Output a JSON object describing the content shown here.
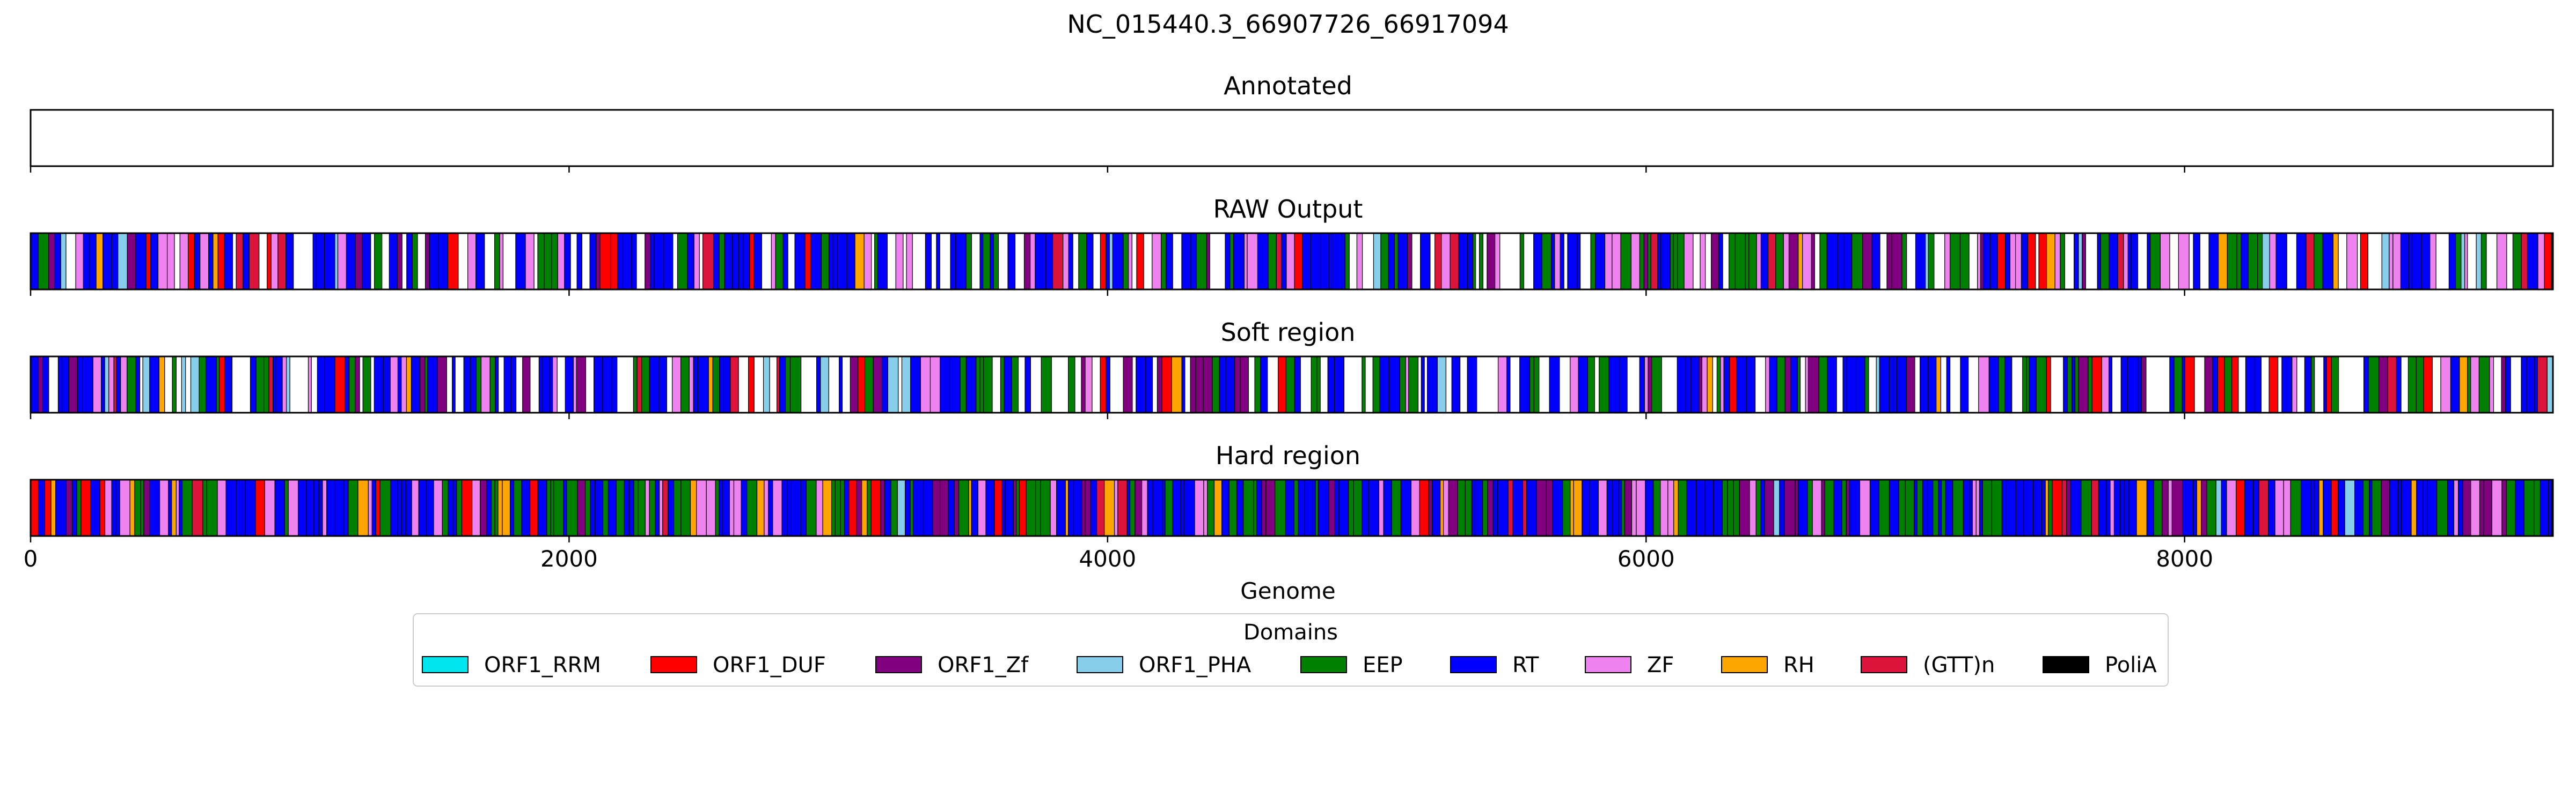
{
  "chart_data": {
    "type": "track",
    "title": "NC_015440.3_66907726_66917094",
    "xlabel": "Genome",
    "xlim": [
      0,
      9368
    ],
    "xticks": [
      0,
      2000,
      4000,
      6000,
      8000
    ],
    "tracks": [
      {
        "key": "annotated",
        "title": "Annotated",
        "segments": []
      },
      {
        "key": "raw",
        "title": "RAW Output",
        "density": 0.72,
        "mix": {
          "RT": 0.42,
          "EEP": 0.2,
          "ZF": 0.14,
          "ORF1_Zf": 0.1,
          "ORF1_DUF": 0.05,
          "ORF1_PHA": 0.04,
          "RH": 0.03,
          "(GTT)n": 0.02
        }
      },
      {
        "key": "soft",
        "title": "Soft region",
        "density": 0.72,
        "mix": {
          "RT": 0.42,
          "EEP": 0.2,
          "ZF": 0.14,
          "ORF1_Zf": 0.1,
          "ORF1_DUF": 0.05,
          "ORF1_PHA": 0.04,
          "RH": 0.03,
          "(GTT)n": 0.02
        }
      },
      {
        "key": "hard",
        "title": "Hard region",
        "density": 1.0,
        "mix": {
          "RT": 0.44,
          "EEP": 0.22,
          "ZF": 0.12,
          "ORF1_Zf": 0.1,
          "ORF1_DUF": 0.04,
          "RH": 0.04,
          "(GTT)n": 0.03,
          "ORF1_PHA": 0.01
        }
      }
    ],
    "legend": {
      "title": "Domains",
      "position": "bottom-center",
      "entries": [
        {
          "label": "ORF1_RRM",
          "color": "#00e5ee"
        },
        {
          "label": "ORF1_DUF",
          "color": "#ff0000"
        },
        {
          "label": "ORF1_Zf",
          "color": "#800080"
        },
        {
          "label": "ORF1_PHA",
          "color": "#87ceeb"
        },
        {
          "label": "EEP",
          "color": "#008000"
        },
        {
          "label": "RT",
          "color": "#0000ff"
        },
        {
          "label": "ZF",
          "color": "#ee82ee"
        },
        {
          "label": "RH",
          "color": "#ffa500"
        },
        {
          "label": "(GTT)n",
          "color": "#dc143c"
        },
        {
          "label": "PoliA",
          "color": "#000000"
        }
      ]
    }
  }
}
